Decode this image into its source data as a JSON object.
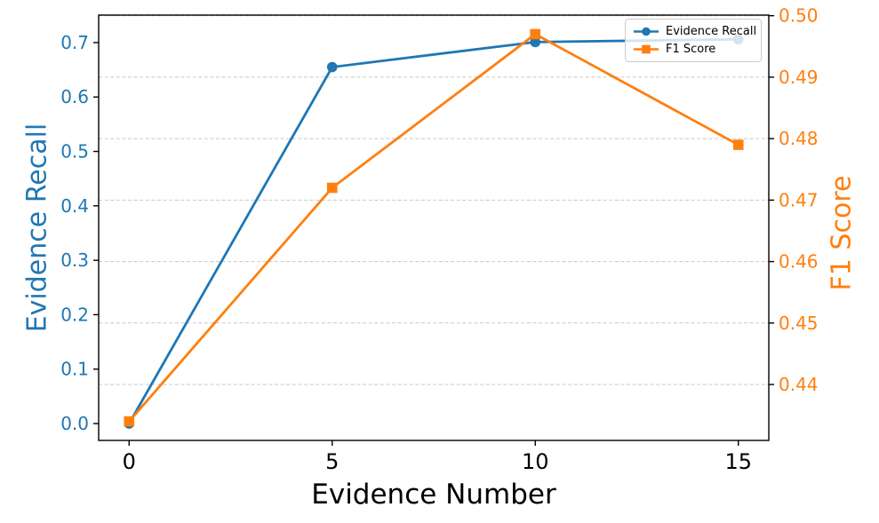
{
  "chart_data": {
    "type": "line",
    "title": "",
    "xlabel": "Evidence Number",
    "ylabel_left": "Evidence Recall",
    "ylabel_right": "F1 Score",
    "series": [
      {
        "name": "Evidence Recall",
        "axis": "left",
        "marker": "circle",
        "color": "#1f77b4",
        "x": [
          0,
          5,
          10,
          15
        ],
        "values": [
          0.0,
          0.655,
          0.701,
          0.706
        ]
      },
      {
        "name": "F1 Score",
        "axis": "right",
        "marker": "square",
        "color": "#ff7f0e",
        "x": [
          0,
          5,
          10,
          15
        ],
        "values": [
          0.434,
          0.472,
          0.497,
          0.479
        ]
      }
    ],
    "xticks": [
      0,
      5,
      10,
      15
    ],
    "yticks_left": [
      0.0,
      0.1,
      0.2,
      0.3,
      0.4,
      0.5,
      0.6,
      0.7
    ],
    "yticks_right": [
      0.44,
      0.45,
      0.46,
      0.47,
      0.48,
      0.49,
      0.5
    ],
    "xlim": [
      -0.75,
      15.75
    ],
    "ylim_left": [
      -0.031,
      0.7505
    ],
    "ylim_right": [
      0.4309,
      0.5001
    ],
    "grid": "horizontal dashed at right-axis ticks",
    "grid_color": "#c9c9c9",
    "axis_color": "#000000",
    "left_tick_color": "#1f77b4",
    "right_tick_color": "#ff7f0e",
    "legend_position": "upper right",
    "legend_entries": [
      "Evidence Recall",
      "F1 Score"
    ]
  }
}
